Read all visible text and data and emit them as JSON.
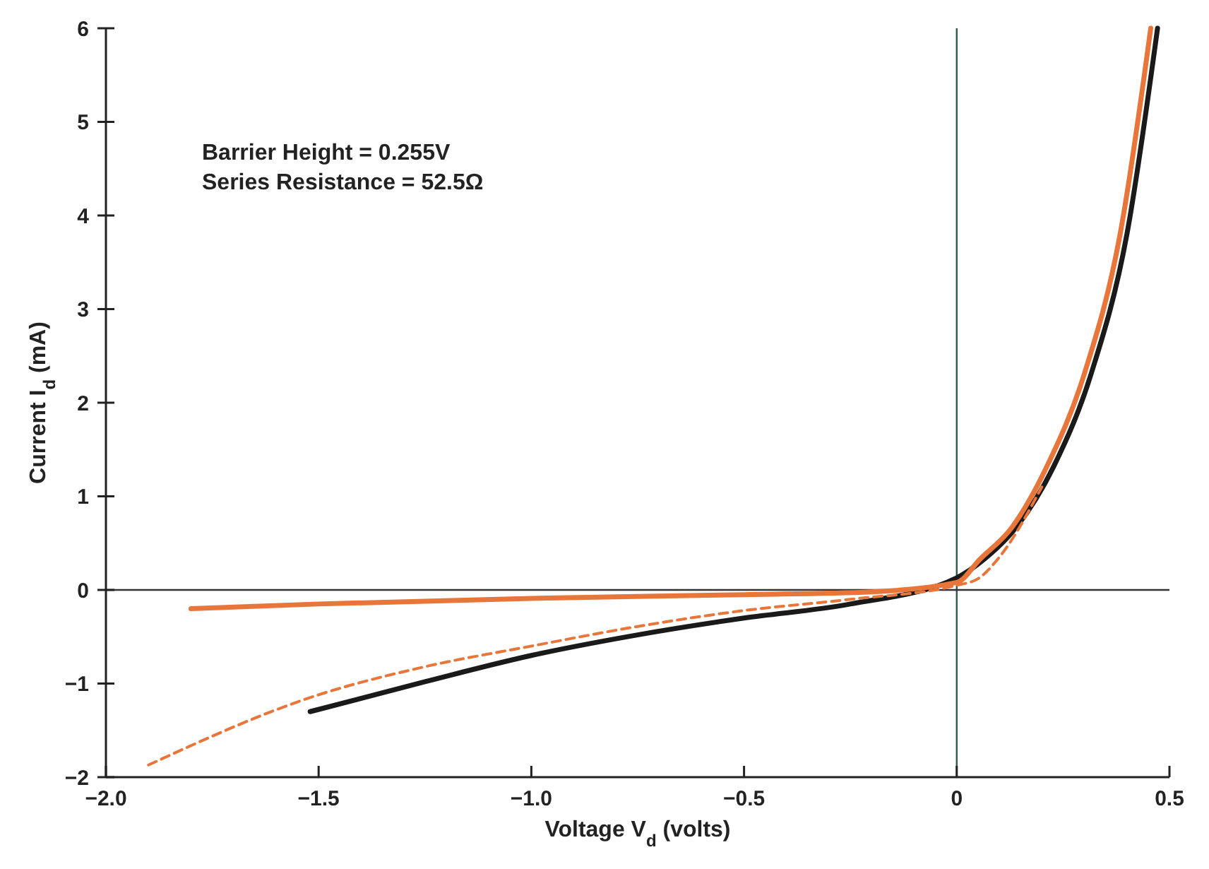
{
  "chart_data": {
    "type": "line",
    "xlabel": "Voltage V$_{d}$ (volts)",
    "ylabel": "Current I$_{d}$ (mA)",
    "annotations": [
      "Barrier Height = 0.255V",
      "Series Resistance = 52.5Ω"
    ],
    "xlim": [
      -2.0,
      0.5
    ],
    "ylim": [
      -2,
      6
    ],
    "xticks": [
      {
        "value": -2,
        "label": "−2.0"
      },
      {
        "value": -1.5,
        "label": "−1.5"
      },
      {
        "value": -1,
        "label": "−1.0"
      },
      {
        "value": -0.5,
        "label": "−0.5"
      },
      0,
      0.5
    ],
    "yticks": [
      {
        "value": -2,
        "label": "−2"
      },
      {
        "value": -1,
        "label": "−1"
      },
      0,
      1,
      2,
      3,
      4,
      5,
      6
    ],
    "grid": false,
    "marker": "none",
    "ref_lines": [
      {
        "axis": "x",
        "value": 0,
        "color": "#2a5a50"
      },
      {
        "axis": "y",
        "value": 0,
        "color": "#333333"
      }
    ],
    "series": [
      {
        "color": "#1a1a1a",
        "line_style": "solid",
        "x": [
          -1.52,
          -1.25,
          -1.0,
          -0.75,
          -0.5,
          -0.25,
          0,
          0.065,
          0.14,
          0.228,
          0.316,
          0.4,
          0.472
        ],
        "values": [
          -1.3,
          -0.98,
          -0.7,
          -0.48,
          -0.3,
          -0.15,
          0.13,
          0.33,
          0.67,
          1.32,
          2.31,
          3.8,
          6.0
        ]
      },
      {
        "color": "#e8763a",
        "line_style": "dashed",
        "x": [
          -1.9,
          -1.5,
          -1.25,
          -1.0,
          -0.75,
          -0.5,
          -0.25,
          0,
          0.05,
          0.1,
          0.2
        ],
        "values": [
          -1.87,
          -1.12,
          -0.82,
          -0.6,
          -0.39,
          -0.22,
          -0.1,
          0.05,
          0.12,
          0.35,
          1.1
        ]
      },
      {
        "color": "#e8763a",
        "line_style": "solid",
        "x": [
          -1.8,
          -1.5,
          -1.0,
          -0.5,
          -0.2,
          0,
          0.055,
          0.13,
          0.212,
          0.3,
          0.384,
          0.456
        ],
        "values": [
          -0.2,
          -0.15,
          -0.09,
          -0.05,
          -0.02,
          0.08,
          0.33,
          0.67,
          1.32,
          2.31,
          3.8,
          6.0
        ]
      }
    ]
  }
}
